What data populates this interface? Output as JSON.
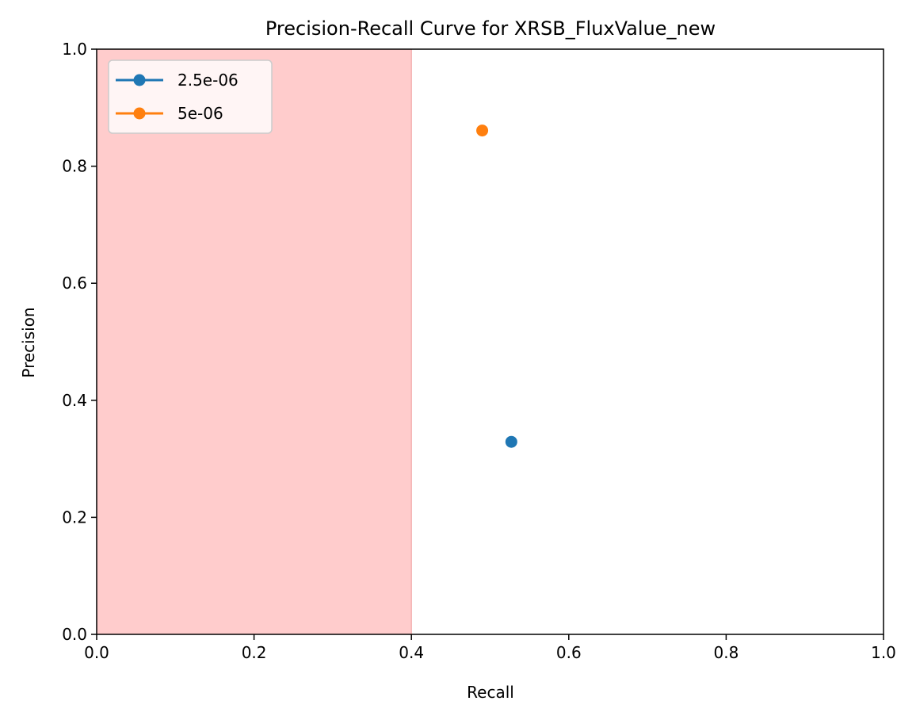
{
  "chart_data": {
    "type": "scatter",
    "title": "Precision-Recall Curve for XRSB_FluxValue_new",
    "xlabel": "Recall",
    "ylabel": "Precision",
    "xlim": [
      0,
      1
    ],
    "ylim": [
      0,
      1
    ],
    "xticks": [
      "0.0",
      "0.2",
      "0.4",
      "0.6",
      "0.8",
      "1.0"
    ],
    "yticks": [
      "0.0",
      "0.2",
      "0.4",
      "0.6",
      "0.8",
      "1.0"
    ],
    "grid": false,
    "legend_position": "top-left",
    "shaded_region": {
      "x_from": 0,
      "x_to": 0.4,
      "color": "#ffcccc"
    },
    "series": [
      {
        "name": "2.5e-06",
        "color": "#1f77b4",
        "points": [
          {
            "x": 0.527,
            "y": 0.329
          }
        ]
      },
      {
        "name": "5e-06",
        "color": "#ff7f0e",
        "points": [
          {
            "x": 0.49,
            "y": 0.861
          }
        ]
      }
    ]
  }
}
